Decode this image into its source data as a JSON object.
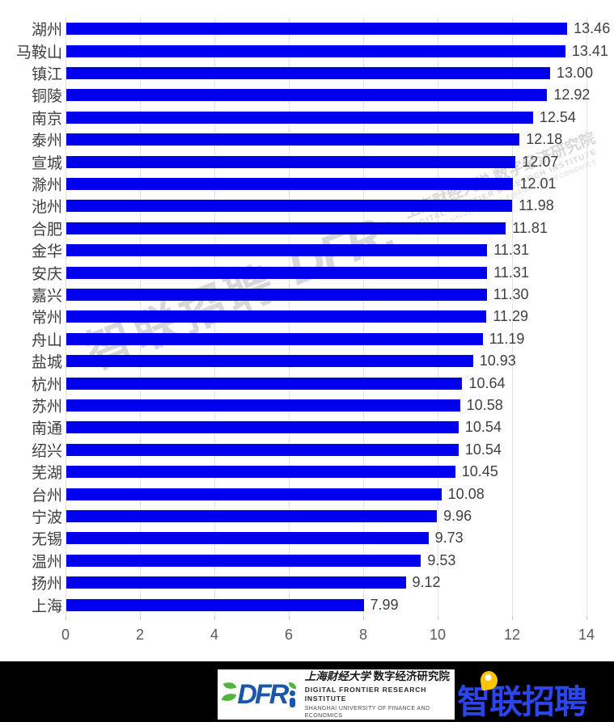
{
  "chart_data": {
    "type": "bar",
    "orientation": "horizontal",
    "categories": [
      "湖州",
      "马鞍山",
      "镇江",
      "铜陵",
      "南京",
      "泰州",
      "宣城",
      "滁州",
      "池州",
      "合肥",
      "金华",
      "安庆",
      "嘉兴",
      "常州",
      "舟山",
      "盐城",
      "杭州",
      "苏州",
      "南通",
      "绍兴",
      "芜湖",
      "台州",
      "宁波",
      "无锡",
      "温州",
      "扬州",
      "上海"
    ],
    "values": [
      13.46,
      13.41,
      13.0,
      12.92,
      12.54,
      12.18,
      12.07,
      12.01,
      11.98,
      11.81,
      11.31,
      11.31,
      11.3,
      11.29,
      11.19,
      10.93,
      10.64,
      10.58,
      10.54,
      10.54,
      10.45,
      10.08,
      9.96,
      9.73,
      9.53,
      9.12,
      7.99
    ],
    "value_labels": [
      "13.46",
      "13.41",
      "13.00",
      "12.92",
      "12.54",
      "12.18",
      "12.07",
      "12.01",
      "11.98",
      "11.81",
      "11.31",
      "11.31",
      "11.30",
      "11.29",
      "11.19",
      "10.93",
      "10.64",
      "10.58",
      "10.54",
      "10.54",
      "10.45",
      "10.08",
      "9.96",
      "9.73",
      "9.53",
      "9.12",
      "7.99"
    ],
    "title": "",
    "xlabel": "",
    "ylabel": "",
    "x_ticks": [
      0,
      2,
      4,
      6,
      8,
      10,
      12,
      14
    ],
    "xlim": [
      0,
      14
    ],
    "grid": true,
    "legend": false,
    "bar_color": "#0000ee",
    "gridline_color": "#e2e2e2",
    "label_color": "#3f3f3f",
    "tick_label_color": "#595959"
  },
  "watermark": {
    "zhaopin_text": "智联招聘",
    "dfri_text": "DFR:",
    "cn_line": "上海财经大学 数字经济研究院",
    "en_line1": "DIGITAL FRONTIER RESEARCH INSTITUTE",
    "en_line2": "SHANGHAI UNIVERSITY OF FINANCE AND ECONOMICS"
  },
  "footer": {
    "dfri_letters": "DFR",
    "cn_university": "上海财经大学",
    "cn_institute": "数字经济研究院",
    "en_institute": "DIGITAL FRONTIER RESEARCH INSTITUTE",
    "en_university": "SHANGHAI UNIVERSITY OF FINANCE AND ECONOMICS",
    "zhaopin_logo": "智联招聘",
    "colors": {
      "band": "#000000",
      "dfri_blue": "#1c57a7",
      "leaf_green": "#52b43c",
      "zhaopin_blue": "#2b46ef",
      "pin_yellow": "#ffc40a"
    }
  }
}
